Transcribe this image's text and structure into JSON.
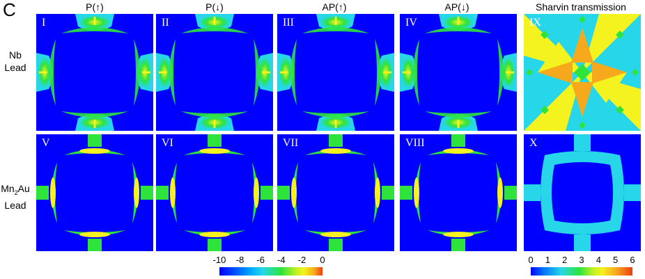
{
  "figure": {
    "panel_letter": "C",
    "columns": [
      "P(↑)",
      "P(↓)",
      "AP(↑)",
      "AP(↓)",
      "Sharvin transmission"
    ],
    "rows": [
      {
        "lines": [
          "Nb",
          "Lead"
        ]
      },
      {
        "lines": [
          "Mn",
          "2",
          "Au",
          "Lead"
        ]
      }
    ],
    "panels": [
      {
        "label": "I",
        "kind": "nb"
      },
      {
        "label": "II",
        "kind": "nb"
      },
      {
        "label": "III",
        "kind": "nb"
      },
      {
        "label": "IV",
        "kind": "nb"
      },
      {
        "label": "IX",
        "kind": "sharvin-nb"
      },
      {
        "label": "V",
        "kind": "mn"
      },
      {
        "label": "VI",
        "kind": "mn"
      },
      {
        "label": "VII",
        "kind": "mn"
      },
      {
        "label": "VIII",
        "kind": "mn"
      },
      {
        "label": "X",
        "kind": "sharvin-mn"
      }
    ]
  },
  "colorbars": {
    "log": {
      "ticks": [
        "-10",
        "-8",
        "-6",
        "-4",
        "-2",
        "0"
      ]
    },
    "sharvin": {
      "ticks": [
        "0",
        "1",
        "2",
        "3",
        "4",
        "5",
        "6"
      ]
    }
  },
  "colors": {
    "background_blue": "#0000ff",
    "cyan": "#27d7e9",
    "green": "#2ee43c",
    "yellow": "#f4f21f",
    "orange": "#f6a91d",
    "red": "#ef3c14"
  }
}
